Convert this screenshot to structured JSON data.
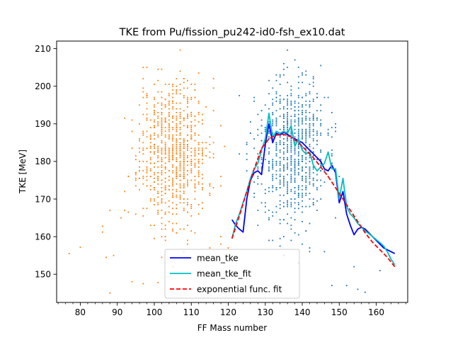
{
  "chart_data": {
    "type": "scatter",
    "title": "TKE from  Pu/fission_pu242-id0-fsh_ex10.dat",
    "xlabel": "FF Mass number",
    "ylabel": "TKE [MeV]",
    "xlim": [
      73.6,
      168.5
    ],
    "ylim": [
      142.5,
      212
    ],
    "xticks": [
      80,
      90,
      100,
      110,
      120,
      130,
      140,
      150,
      160
    ],
    "yticks": [
      150,
      160,
      170,
      180,
      190,
      200,
      210
    ],
    "minor_xtick_step": 2,
    "grid": false,
    "legend": {
      "position": "lower-center"
    },
    "colors": {
      "light_fragments": "#ff7f0e",
      "heavy_fragments": "#1f77b4",
      "mean_tke": "#0000ff",
      "mean_tke_fit": "#00bfbf",
      "exp_fit": "#ff0000"
    },
    "scatter_clouds": [
      {
        "color": "#ff7f0e",
        "center": [
          105,
          183
        ],
        "a_range": [
          77,
          121
        ],
        "spread": [
          4.6,
          9.5
        ],
        "count": 850,
        "seed": 11
      },
      {
        "color": "#1f77b4",
        "center": [
          137,
          183
        ],
        "a_range": [
          121,
          165
        ],
        "spread": [
          4.6,
          9.5
        ],
        "count": 850,
        "seed": 23
      }
    ],
    "outliers": {
      "light": [
        [
          77,
          155.5
        ],
        [
          80,
          157.2
        ],
        [
          86,
          162.8
        ],
        [
          86,
          161.2
        ],
        [
          87,
          154.5
        ],
        [
          88,
          145
        ],
        [
          88,
          167
        ],
        [
          89,
          155
        ],
        [
          92,
          167
        ],
        [
          93,
          176
        ],
        [
          94,
          148
        ],
        [
          97,
          147.5
        ],
        [
          101,
          147.8
        ],
        [
          103,
          160
        ],
        [
          105,
          152
        ],
        [
          107,
          209.6
        ],
        [
          109,
          158
        ],
        [
          112,
          166
        ],
        [
          115,
          157
        ],
        [
          118,
          158
        ],
        [
          118,
          160
        ],
        [
          120,
          157
        ]
      ],
      "heavy": [
        [
          127,
          196
        ],
        [
          128,
          163
        ],
        [
          131,
          159
        ],
        [
          136,
          209.6
        ],
        [
          140,
          158
        ],
        [
          142,
          156
        ],
        [
          146,
          156
        ],
        [
          148,
          147
        ],
        [
          149,
          165
        ],
        [
          152,
          147
        ],
        [
          154,
          152
        ],
        [
          155,
          146
        ],
        [
          157,
          145.2
        ],
        [
          161,
          151
        ]
      ]
    },
    "series": [
      {
        "name": "mean_tke",
        "x": [
          121,
          122,
          123,
          124,
          125,
          126,
          127,
          128,
          129,
          130,
          131,
          132,
          133,
          134,
          135,
          136,
          137,
          138,
          139,
          140,
          141,
          142,
          143,
          144,
          145,
          146,
          147,
          148,
          149,
          150,
          151,
          152,
          153,
          154,
          155,
          156,
          157,
          158,
          159,
          160,
          161,
          162,
          163,
          164,
          165
        ],
        "y": [
          164.5,
          163,
          162,
          161.2,
          170,
          175,
          177,
          177.5,
          176.5,
          184.5,
          190,
          185,
          187.5,
          187,
          187.8,
          187.2,
          186.5,
          186,
          185.5,
          185,
          184,
          183,
          182,
          181,
          180,
          178,
          177.5,
          179,
          177,
          169,
          172,
          166,
          163,
          160.5,
          162,
          162.5,
          162,
          161,
          160,
          159,
          158,
          157,
          156.5,
          156,
          155.5
        ]
      },
      {
        "name": "mean_tke_fit",
        "x": [
          121,
          122,
          123,
          124,
          125,
          126,
          127,
          128,
          129,
          130,
          131,
          132,
          133,
          134,
          135,
          136,
          137,
          138,
          139,
          140,
          141,
          142,
          143,
          144,
          145,
          146,
          147,
          148,
          149,
          150,
          151,
          152,
          153,
          154,
          155,
          156,
          157,
          158,
          159,
          160,
          161,
          162,
          163,
          164,
          165
        ],
        "y": [
          159.5,
          163.5,
          166,
          169,
          172,
          175.5,
          178,
          179.5,
          183,
          186,
          192.8,
          186.5,
          188,
          187.5,
          188,
          187.5,
          189.5,
          184,
          186,
          183,
          182,
          182.5,
          179,
          177.5,
          178.5,
          179.5,
          182.5,
          178,
          178,
          170,
          175.5,
          168,
          166,
          165,
          163.5,
          162.5,
          161.5,
          160.8,
          160,
          159.2,
          158.4,
          157.5,
          156,
          154,
          152.5
        ]
      },
      {
        "name": "exponential func. fit",
        "x": [
          121,
          123,
          125,
          127,
          129,
          131,
          133,
          135,
          137,
          139,
          141,
          143,
          145,
          147,
          149,
          151,
          153,
          155,
          157,
          159,
          161,
          163,
          165
        ],
        "y": [
          159.5,
          165.5,
          172,
          178,
          183.5,
          186,
          187,
          187.2,
          186.5,
          185,
          183,
          181,
          178.5,
          176,
          173,
          170,
          167,
          164,
          161,
          158.5,
          156.5,
          154.5,
          152
        ]
      }
    ]
  }
}
